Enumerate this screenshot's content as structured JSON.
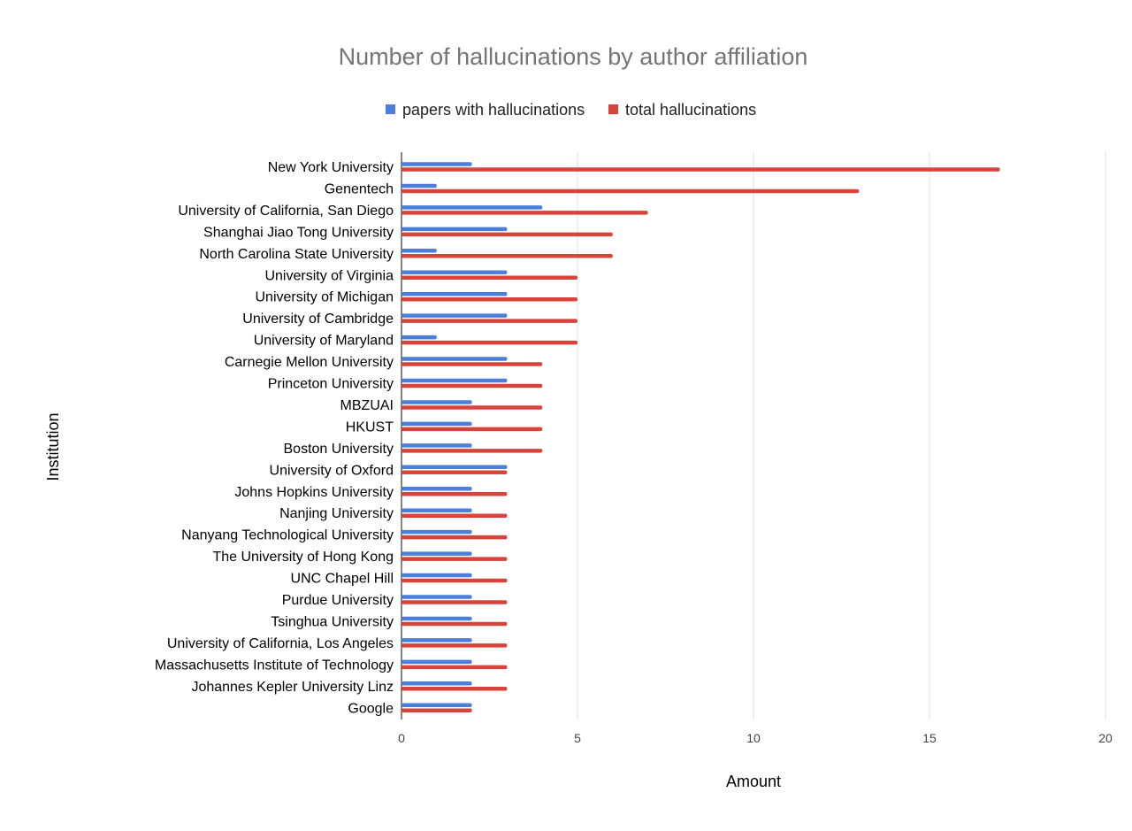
{
  "colors": {
    "papers": "#4a7fdc",
    "total": "#d8433a",
    "grid": "#e0e0e0",
    "axis": "#333333"
  },
  "chart_data": {
    "type": "bar",
    "orientation": "horizontal",
    "title": "Number of hallucinations by author affiliation",
    "xlabel": "Amount",
    "ylabel": "Institution",
    "xlim": [
      0,
      20
    ],
    "xticks": [
      0,
      5,
      10,
      15,
      20
    ],
    "grid": true,
    "legend_position": "top",
    "categories": [
      "New York University",
      "Genentech",
      "University of California, San Diego",
      "Shanghai Jiao Tong University",
      "North Carolina State University",
      "University of Virginia",
      "University of Michigan",
      "University of Cambridge",
      "University of Maryland",
      "Carnegie Mellon University",
      "Princeton University",
      "MBZUAI",
      "HKUST",
      "Boston University",
      "University of Oxford",
      "Johns Hopkins University",
      "Nanjing University",
      "Nanyang Technological University",
      "The University of Hong Kong",
      "UNC Chapel Hill",
      "Purdue University",
      "Tsinghua University",
      "University of California, Los Angeles",
      "Massachusetts Institute of Technology",
      "Johannes Kepler University Linz",
      "Google"
    ],
    "series": [
      {
        "name": "papers with hallucinations",
        "color": "#4a7fdc",
        "values": [
          2,
          1,
          4,
          3,
          1,
          3,
          3,
          3,
          1,
          3,
          3,
          2,
          2,
          2,
          3,
          2,
          2,
          2,
          2,
          2,
          2,
          2,
          2,
          2,
          2,
          2
        ]
      },
      {
        "name": "total hallucinations",
        "color": "#d8433a",
        "values": [
          17,
          13,
          7,
          6,
          6,
          5,
          5,
          5,
          5,
          4,
          4,
          4,
          4,
          4,
          3,
          3,
          3,
          3,
          3,
          3,
          3,
          3,
          3,
          3,
          3,
          2
        ]
      }
    ]
  }
}
